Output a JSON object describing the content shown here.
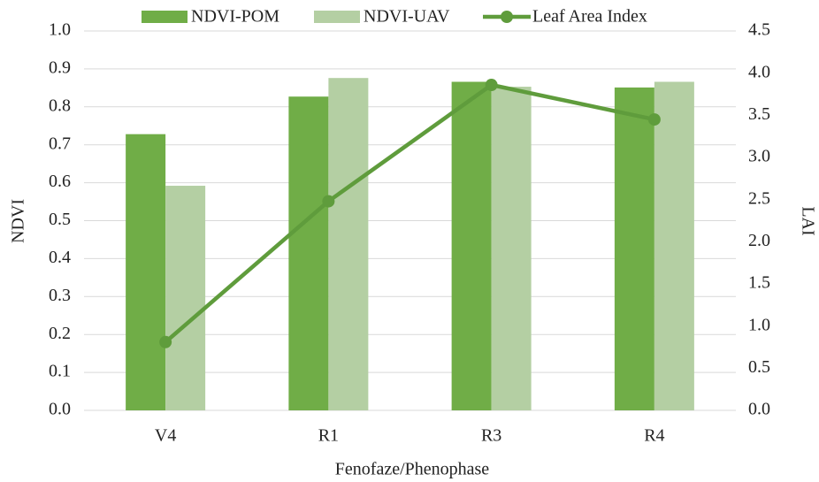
{
  "chart_data": {
    "type": "bar",
    "x_label": "Fenofaze/Phenophase",
    "y_label": "NDVI",
    "y2_label": "LAI",
    "categories": [
      "V4",
      "R1",
      "R3",
      "R4"
    ],
    "series": [
      {
        "name": "NDVI-POM",
        "color": "#70ad47",
        "values": [
          0.728,
          0.827,
          0.866,
          0.851
        ]
      },
      {
        "name": "NDVI-UAV",
        "color": "#b4cfa3",
        "values": [
          0.592,
          0.876,
          0.853,
          0.866
        ]
      },
      {
        "name": "Leaf Area Index",
        "type": "line",
        "axis": "y2",
        "color": "#5f9c3c",
        "values": [
          0.81,
          2.48,
          3.86,
          3.45
        ]
      }
    ],
    "ylim": [
      0,
      1
    ],
    "yticks": [
      {
        "value": 0,
        "label": "0.0"
      },
      0.1,
      0.2,
      0.3,
      0.4,
      0.5,
      0.6,
      0.7,
      0.8,
      0.9,
      {
        "value": 1,
        "label": "1.0"
      }
    ],
    "y2lim": [
      0,
      4.5
    ],
    "y2ticks": [
      {
        "value": 0,
        "label": "0.0"
      },
      0.5,
      {
        "value": 1,
        "label": "1.0"
      },
      1.5,
      {
        "value": 2,
        "label": "2.0"
      },
      2.5,
      {
        "value": 3,
        "label": "3.0"
      },
      3.5,
      {
        "value": 4,
        "label": "4.0"
      },
      4.5
    ],
    "grid": true,
    "legend": "top"
  }
}
